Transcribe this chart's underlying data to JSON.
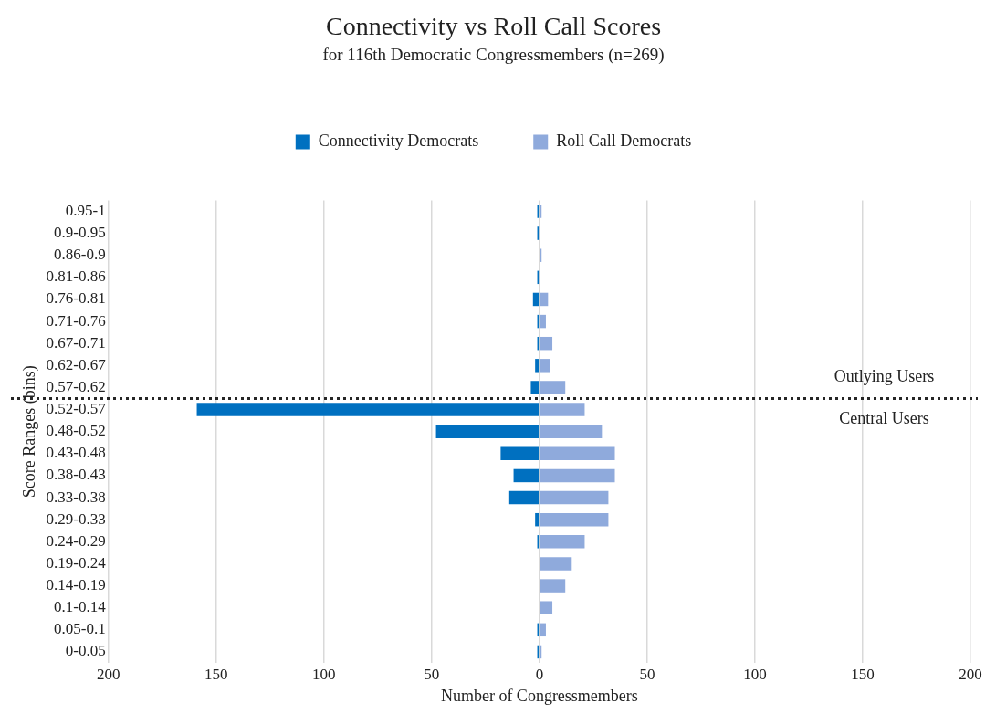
{
  "chart_data": {
    "type": "bar",
    "orientation": "horizontal",
    "stacked": true,
    "title": "Connectivity vs Roll Call Scores",
    "subtitle": "for 116th Democratic Congressmembers (n=269)",
    "xlabel": "Number of Congressmembers",
    "ylabel": "Score Ranges (bins)",
    "categories": [
      "0.95-1",
      "0.9-0.95",
      "0.86-0.9",
      "0.81-0.86",
      "0.76-0.81",
      "0.71-0.76",
      "0.67-0.71",
      "0.62-0.67",
      "0.57-0.62",
      "0.52-0.57",
      "0.48-0.52",
      "0.43-0.48",
      "0.38-0.43",
      "0.33-0.38",
      "0.29-0.33",
      "0.24-0.29",
      "0.19-0.24",
      "0.14-0.19",
      "0.1-0.14",
      "0.05-0.1",
      "0-0.05"
    ],
    "series": [
      {
        "name": "Connectivity Democrats",
        "color": "#0070c0",
        "values": [
          -1,
          -1,
          0,
          -1,
          -3,
          -1,
          -1,
          -2,
          -4,
          -159,
          -48,
          -18,
          -12,
          -14,
          -2,
          -1,
          0,
          0,
          0,
          -1,
          -1
        ]
      },
      {
        "name": "Roll Call Democrats",
        "color": "#8faadc",
        "values": [
          1,
          0,
          1,
          0,
          4,
          3,
          6,
          5,
          12,
          21,
          29,
          35,
          35,
          32,
          32,
          21,
          15,
          12,
          6,
          3,
          1
        ]
      }
    ],
    "xlim": [
      -200,
      200
    ],
    "xticks": [
      {
        "value": -200,
        "label": "200"
      },
      {
        "value": -150,
        "label": "150"
      },
      {
        "value": -100,
        "label": "100"
      },
      {
        "value": -50,
        "label": "50"
      },
      0,
      50,
      100,
      150,
      200
    ],
    "ref_lines": [
      {
        "axis": "y",
        "value": "0.57-0.62",
        "line_style": "dotted",
        "color": "#262626"
      }
    ],
    "annotations": [
      "Outlying Users",
      "Central Users"
    ],
    "grid": "x",
    "legend": "top"
  }
}
